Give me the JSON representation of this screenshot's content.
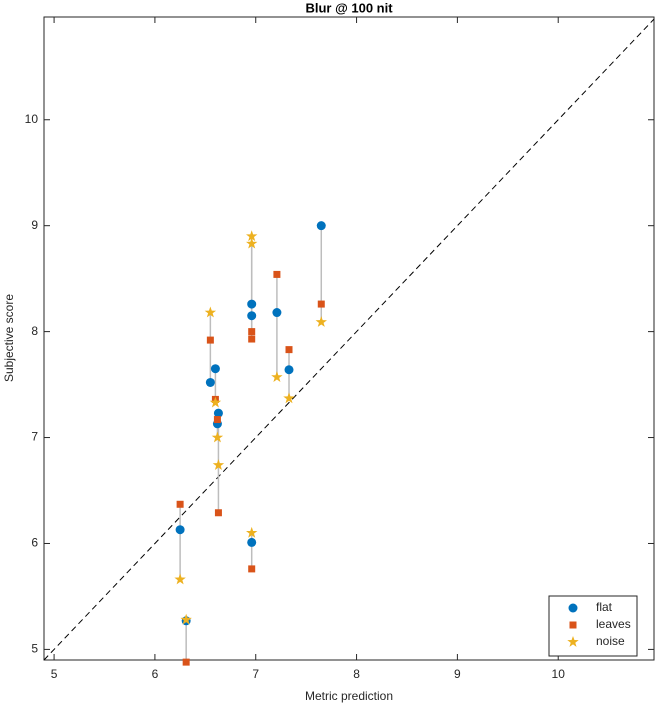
{
  "chart_data": {
    "type": "scatter",
    "title": "Blur @ 100 nit",
    "x_label": "Metric prediction",
    "y_label": "Subjective score",
    "x": [
      6.25,
      6.31,
      6.55,
      6.6,
      6.63,
      6.62,
      6.96,
      6.96,
      6.96,
      7.21,
      7.33,
      7.65
    ],
    "series": [
      {
        "name": "flat",
        "color": "#0072bd",
        "marker": "circle",
        "values": [
          6.13,
          5.27,
          7.52,
          7.65,
          7.23,
          7.13,
          8.26,
          8.15,
          6.01,
          8.18,
          7.64,
          9.0
        ]
      },
      {
        "name": "leaves",
        "color": "#d95319",
        "marker": "square",
        "values": [
          6.37,
          4.88,
          7.92,
          7.36,
          6.29,
          7.17,
          8.0,
          7.93,
          5.76,
          8.54,
          7.83,
          8.26
        ]
      },
      {
        "name": "noise",
        "color": "#edb120",
        "marker": "star",
        "values": [
          5.66,
          5.28,
          8.18,
          7.33,
          6.74,
          7.0,
          8.9,
          8.83,
          6.1,
          7.57,
          7.37,
          8.09
        ]
      }
    ],
    "xlim": [
      4.9,
      10.95
    ],
    "ylim": [
      4.9,
      10.97
    ],
    "xticks": [
      5,
      6,
      7,
      8,
      9,
      10
    ],
    "yticks": [
      5,
      6,
      7,
      8,
      9,
      10
    ],
    "legend": "lower right",
    "diagonal": true,
    "connectors": true
  }
}
